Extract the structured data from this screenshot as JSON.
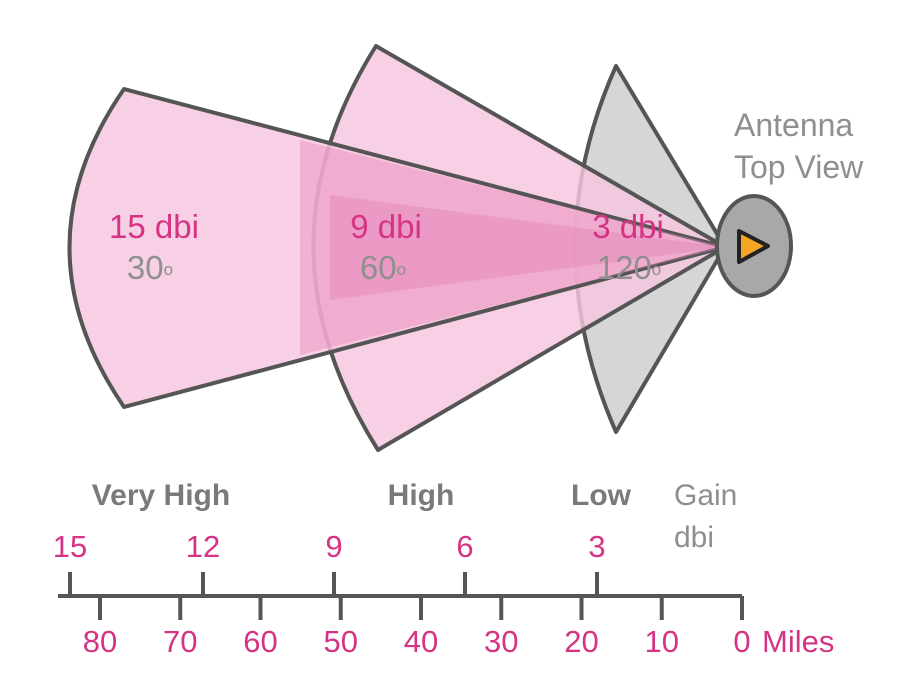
{
  "antenna": {
    "label_line1": "Antenna",
    "label_line2": "Top View",
    "icon": "play-triangle"
  },
  "beams": [
    {
      "gain": "15 dbi",
      "angle": "30",
      "unit": "o",
      "category": "Very High"
    },
    {
      "gain": "9 dbi",
      "angle": "60",
      "unit": "o",
      "category": "High"
    },
    {
      "gain": "3 dbi",
      "angle": "120",
      "unit": "o",
      "category": "Low"
    }
  ],
  "gain_axis": {
    "title_line1": "Gain",
    "title_line2": "dbi",
    "ticks": [
      "15",
      "12",
      "9",
      "6",
      "3"
    ]
  },
  "distance_axis": {
    "ticks": [
      "80",
      "70",
      "60",
      "50",
      "40",
      "30",
      "20",
      "10",
      "0"
    ],
    "unit": "Miles"
  },
  "colors": {
    "pink": "#d63384",
    "pink_fill": "#f7c6df",
    "gray_fill": "#d6d6d6",
    "outline": "#555555",
    "arrow": "#f5a623"
  }
}
